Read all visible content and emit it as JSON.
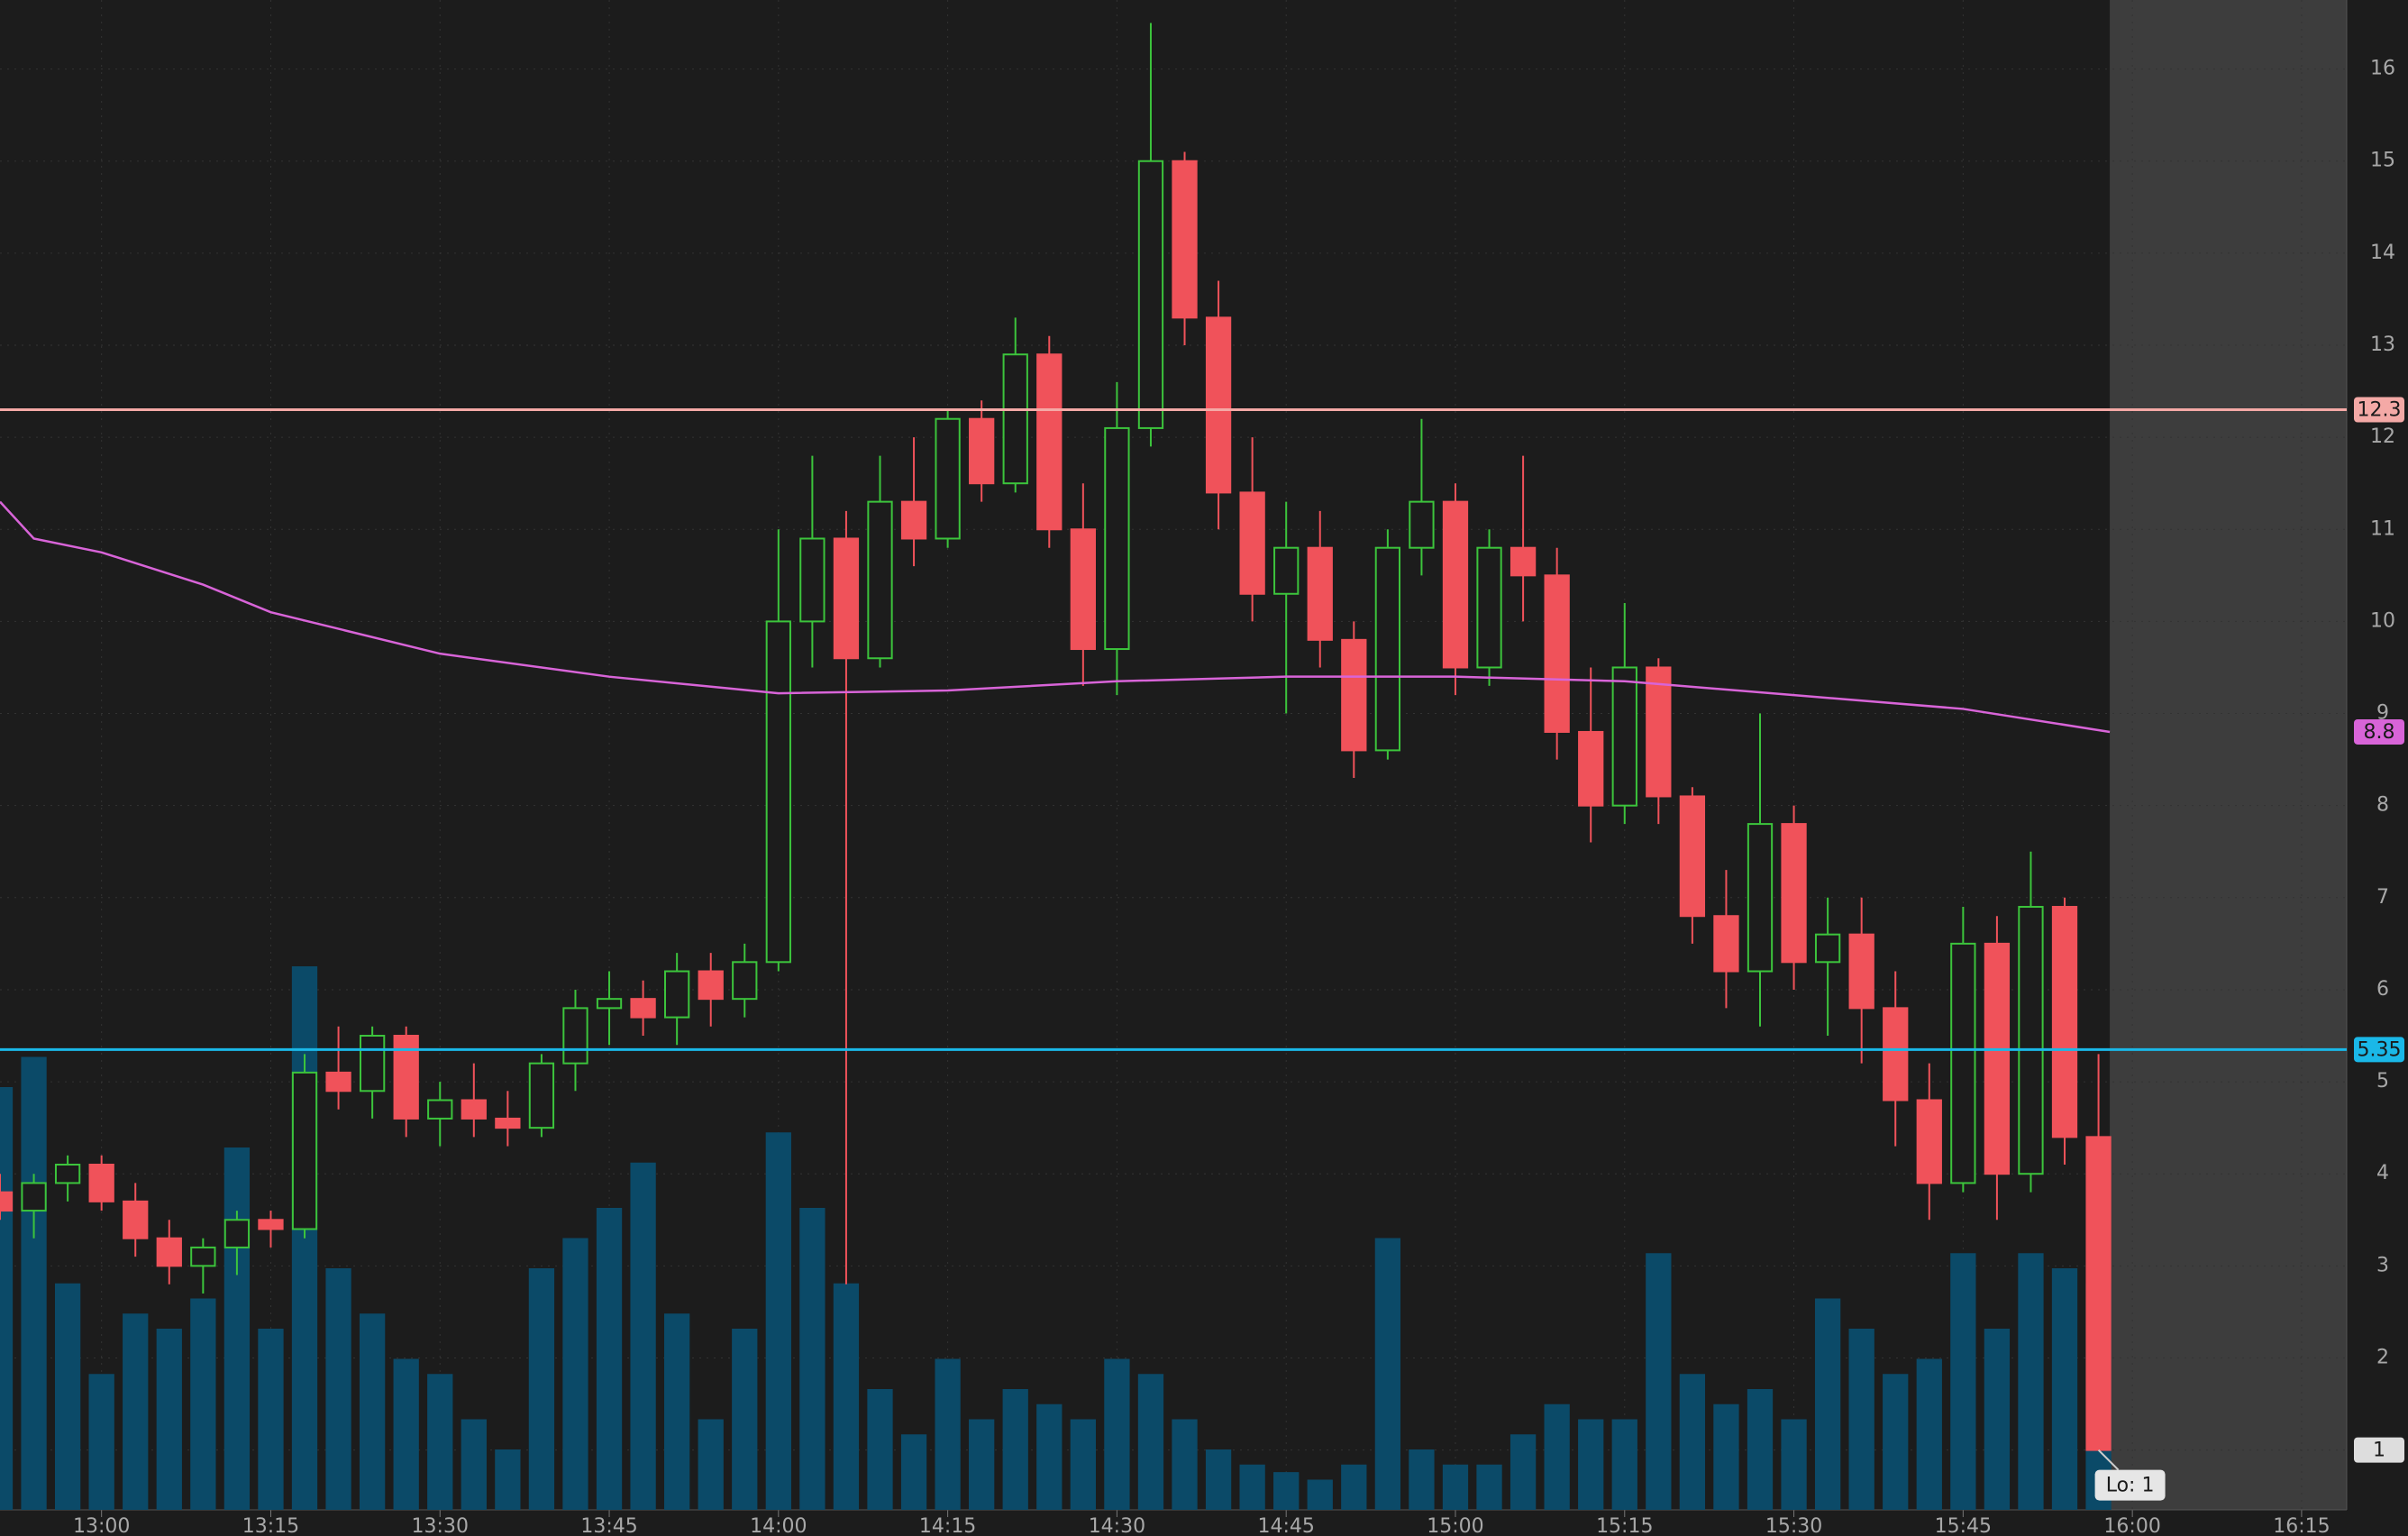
{
  "chart_data": {
    "type": "candlestick",
    "x": [
      "12:51",
      "12:54",
      "12:57",
      "13:00",
      "13:03",
      "13:06",
      "13:09",
      "13:12",
      "13:15",
      "13:18",
      "13:21",
      "13:24",
      "13:27",
      "13:30",
      "13:33",
      "13:36",
      "13:39",
      "13:42",
      "13:45",
      "13:48",
      "13:51",
      "13:54",
      "13:57",
      "14:00",
      "14:03",
      "14:06",
      "14:09",
      "14:12",
      "14:15",
      "14:18",
      "14:21",
      "14:24",
      "14:27",
      "14:30",
      "14:33",
      "14:36",
      "14:39",
      "14:42",
      "14:45",
      "14:48",
      "14:51",
      "14:54",
      "14:57",
      "15:00",
      "15:03",
      "15:06",
      "15:09",
      "15:12",
      "15:15",
      "15:18",
      "15:21",
      "15:24",
      "15:27",
      "15:30",
      "15:33",
      "15:36",
      "15:39",
      "15:42",
      "15:45",
      "15:48",
      "15:51",
      "15:54",
      "15:57"
    ],
    "open": [
      3.8,
      3.6,
      3.9,
      4.1,
      3.7,
      3.3,
      3.0,
      3.2,
      3.5,
      3.4,
      5.1,
      4.9,
      5.5,
      4.6,
      4.8,
      4.6,
      4.5,
      5.2,
      5.8,
      5.9,
      5.7,
      6.2,
      5.9,
      6.3,
      10.0,
      10.9,
      9.6,
      11.3,
      10.9,
      12.2,
      11.5,
      12.9,
      11.0,
      9.7,
      12.1,
      15.0,
      13.3,
      11.4,
      10.3,
      10.8,
      9.8,
      8.6,
      10.8,
      11.3,
      9.5,
      10.8,
      10.5,
      8.8,
      8.0,
      9.5,
      8.1,
      6.8,
      6.2,
      7.8,
      6.3,
      6.6,
      5.8,
      4.8,
      3.9,
      6.5,
      4.0,
      6.9,
      4.4
    ],
    "high": [
      4.0,
      4.0,
      4.2,
      4.2,
      3.9,
      3.5,
      3.3,
      3.6,
      3.6,
      5.3,
      5.6,
      5.6,
      5.6,
      5.0,
      5.2,
      4.9,
      5.3,
      6.0,
      6.2,
      6.1,
      6.4,
      6.4,
      6.5,
      11.0,
      11.8,
      11.2,
      11.8,
      12.0,
      12.3,
      12.4,
      13.3,
      13.1,
      11.5,
      12.6,
      16.5,
      15.1,
      13.7,
      12.0,
      11.3,
      11.2,
      10.0,
      11.0,
      12.2,
      11.5,
      11.0,
      11.8,
      10.8,
      9.5,
      10.2,
      9.6,
      8.2,
      7.3,
      9.0,
      8.0,
      7.0,
      7.0,
      6.2,
      5.2,
      6.9,
      6.8,
      7.5,
      7.0,
      5.3
    ],
    "low": [
      3.5,
      3.3,
      3.7,
      3.6,
      3.1,
      2.8,
      2.7,
      2.9,
      3.2,
      3.3,
      4.7,
      4.6,
      4.4,
      4.3,
      4.4,
      4.3,
      4.4,
      4.9,
      5.4,
      5.5,
      5.4,
      5.6,
      5.7,
      6.2,
      9.5,
      2.8,
      9.5,
      10.6,
      10.8,
      11.3,
      11.4,
      10.8,
      9.3,
      9.2,
      11.9,
      13.0,
      11.0,
      10.0,
      9.0,
      9.5,
      8.3,
      8.5,
      10.5,
      9.2,
      9.3,
      10.0,
      8.5,
      7.6,
      7.8,
      7.8,
      6.5,
      5.8,
      5.6,
      6.0,
      5.5,
      5.2,
      4.3,
      3.5,
      3.8,
      3.5,
      3.8,
      4.1,
      1.0
    ],
    "close": [
      3.6,
      3.9,
      4.1,
      3.7,
      3.3,
      3.0,
      3.2,
      3.5,
      3.4,
      5.1,
      4.9,
      5.5,
      4.6,
      4.8,
      4.6,
      4.5,
      5.2,
      5.8,
      5.9,
      5.7,
      6.2,
      5.9,
      6.3,
      10.0,
      10.9,
      9.6,
      11.3,
      10.9,
      12.2,
      11.5,
      12.9,
      11.0,
      9.7,
      12.1,
      15.0,
      13.3,
      11.4,
      10.3,
      10.8,
      9.8,
      8.6,
      10.8,
      11.3,
      9.5,
      10.8,
      10.5,
      8.8,
      8.0,
      9.5,
      8.1,
      6.8,
      6.2,
      7.8,
      6.3,
      6.6,
      5.8,
      4.8,
      3.9,
      6.5,
      4.0,
      6.9,
      4.4,
      1.0
    ],
    "volume": [
      280,
      300,
      150,
      90,
      130,
      120,
      140,
      240,
      120,
      360,
      160,
      130,
      100,
      90,
      60,
      40,
      160,
      180,
      200,
      230,
      130,
      60,
      120,
      250,
      200,
      150,
      80,
      50,
      100,
      60,
      80,
      70,
      60,
      100,
      90,
      60,
      40,
      30,
      25,
      20,
      30,
      180,
      40,
      30,
      30,
      50,
      70,
      60,
      60,
      170,
      90,
      70,
      80,
      60,
      140,
      120,
      90,
      100,
      170,
      120,
      170,
      160,
      150
    ],
    "volume_lim": [
      0,
      1000
    ],
    "up_color": "#3cc43c",
    "down_color": "#f0525a",
    "volume_color": "#0b4a68",
    "moving_average": {
      "color": "#d864d8",
      "x": [
        "12:51",
        "12:54",
        "13:00",
        "13:09",
        "13:15",
        "13:30",
        "13:45",
        "14:00",
        "14:15",
        "14:30",
        "14:45",
        "15:00",
        "15:15",
        "15:30",
        "15:45",
        "15:58"
      ],
      "values": [
        11.3,
        10.9,
        10.75,
        10.4,
        10.1,
        9.65,
        9.4,
        9.22,
        9.25,
        9.35,
        9.4,
        9.4,
        9.35,
        9.2,
        9.05,
        8.8
      ]
    },
    "levels": [
      {
        "value": 12.3,
        "color": "#f4a9a6"
      },
      {
        "value": 5.35,
        "color": "#1ab8e8"
      }
    ],
    "last_price": 1,
    "annotation": {
      "text": "Lo: 1",
      "value": 1
    },
    "shade_from": "15:58",
    "xlim": [
      "12:51",
      "16:19"
    ],
    "xticks": [
      "13:00",
      "13:15",
      "13:30",
      "13:45",
      "14:00",
      "14:15",
      "14:30",
      "14:45",
      "15:00",
      "15:15",
      "15:30",
      "15:45",
      "16:00",
      "16:15"
    ],
    "ylim": [
      0.35,
      16.75
    ],
    "yticks": [
      1,
      2,
      3,
      4,
      5,
      6,
      7,
      8,
      9,
      10,
      11,
      12,
      13,
      14,
      15,
      16
    ],
    "grid": true
  }
}
